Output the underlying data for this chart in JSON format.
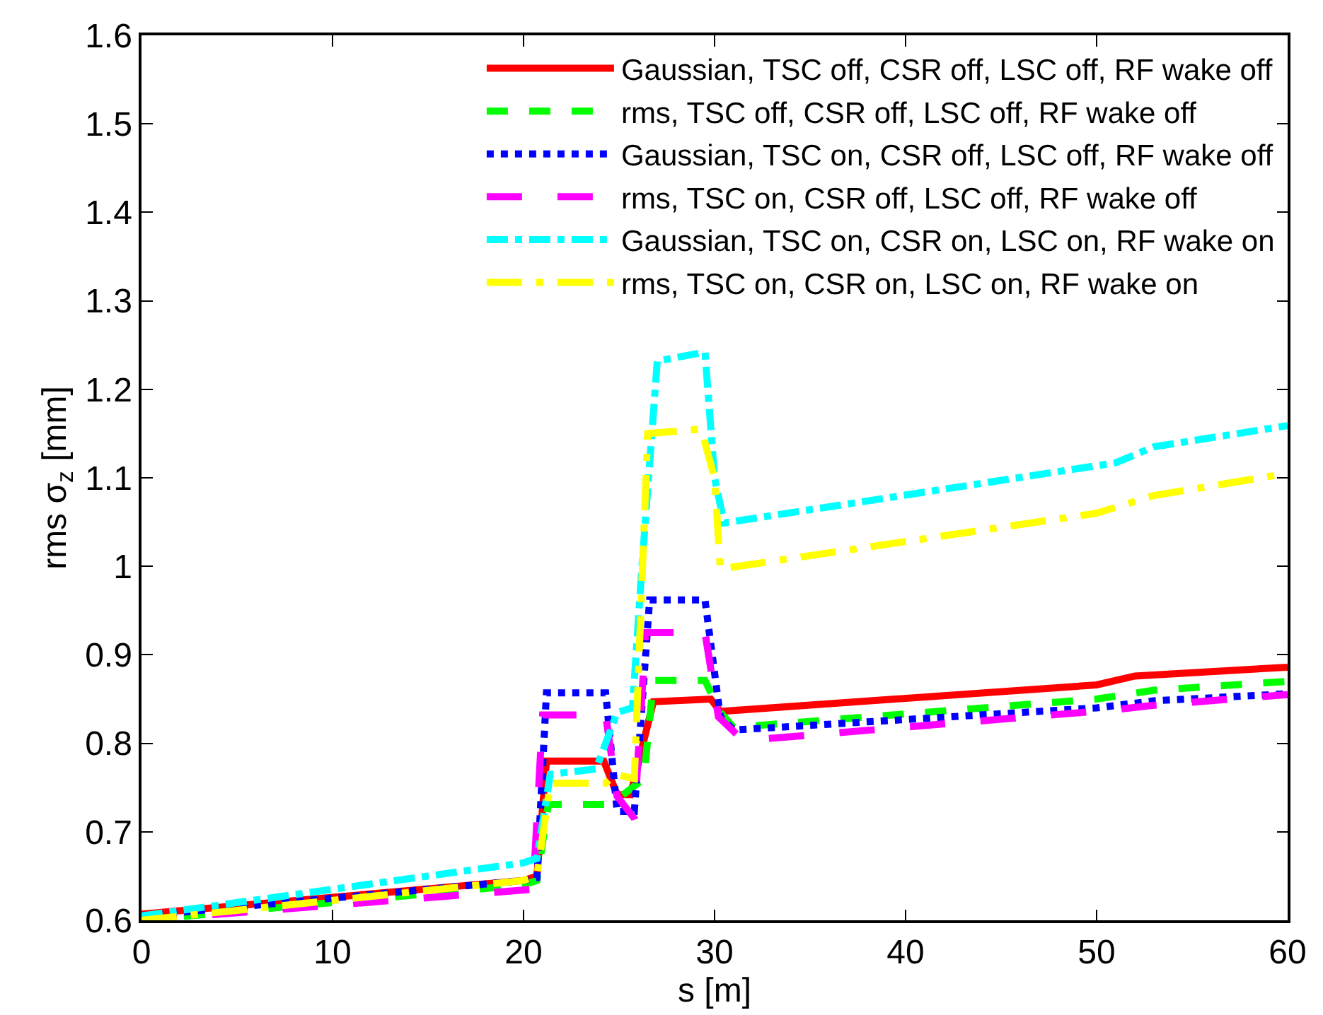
{
  "chart_data": {
    "type": "line",
    "xlabel": "s [m]",
    "ylabel": "rms σ$_{z}$ [mm]",
    "xlim": [
      0,
      60
    ],
    "ylim": [
      0.6,
      1.6
    ],
    "xticks": [
      0,
      10,
      20,
      30,
      40,
      50,
      60
    ],
    "yticks": [
      0.6,
      0.7,
      0.8,
      0.9,
      1,
      1.1,
      1.2,
      1.3,
      1.4,
      1.5,
      1.6
    ],
    "legend": "top right",
    "marker": "none",
    "series": [
      {
        "name": "Gaussian, TSC off, CSR off, LSC off, RF wake off",
        "color": "#ff0000",
        "line_style": "solid",
        "x": [
          0,
          20,
          20.7,
          21.2,
          24.2,
          24.9,
          25.6,
          26.8,
          29.8,
          30.3,
          50,
          52,
          60
        ],
        "values": [
          0.607,
          0.645,
          0.65,
          0.78,
          0.78,
          0.742,
          0.742,
          0.847,
          0.85,
          0.836,
          0.866,
          0.876,
          0.886
        ]
      },
      {
        "name": "rms, TSC off, CSR off, LSC off, RF wake off",
        "color": "#00ff00",
        "line_style": "dashed",
        "x": [
          0,
          20,
          20.7,
          21.3,
          24.3,
          24.8,
          26.3,
          26.8,
          29.5,
          30.3,
          31,
          50,
          53,
          60
        ],
        "values": [
          0.6,
          0.64,
          0.645,
          0.731,
          0.731,
          0.735,
          0.76,
          0.871,
          0.871,
          0.835,
          0.818,
          0.85,
          0.86,
          0.87
        ]
      },
      {
        "name": "Gaussian, TSC on, CSR off, LSC off, RF wake off",
        "color": "#0000ff",
        "line_style": "dotted",
        "x": [
          0,
          20,
          20.7,
          21.2,
          24.3,
          24.9,
          25.8,
          26.6,
          29.5,
          30.3,
          31,
          50,
          53,
          60
        ],
        "values": [
          0.605,
          0.645,
          0.648,
          0.857,
          0.857,
          0.723,
          0.723,
          0.962,
          0.962,
          0.83,
          0.815,
          0.84,
          0.848,
          0.856
        ]
      },
      {
        "name": "rms, TSC on, CSR off, LSC off, RF wake off",
        "color": "#ff00ff",
        "line_style": "long_dashed",
        "x": [
          0,
          20.5,
          21,
          24.3,
          24.9,
          25.8,
          26.4,
          29.5,
          30.2,
          31.5,
          51,
          53,
          60
        ],
        "values": [
          0.6,
          0.635,
          0.832,
          0.832,
          0.74,
          0.715,
          0.925,
          0.925,
          0.83,
          0.803,
          0.838,
          0.843,
          0.855
        ]
      },
      {
        "name": "Gaussian, TSC on, CSR on, LSC on, RF wake on",
        "color": "#00ffff",
        "line_style": "dash_dot",
        "x": [
          0,
          20,
          20.7,
          21.4,
          23.8,
          24.9,
          25.7,
          26.2,
          27,
          29.5,
          30,
          30.5,
          51,
          53,
          60
        ],
        "values": [
          0.605,
          0.665,
          0.67,
          0.765,
          0.771,
          0.835,
          0.84,
          1.0,
          1.232,
          1.242,
          1.1,
          1.049,
          1.117,
          1.135,
          1.159
        ]
      },
      {
        "name": "rms, TSC on, CSR on, LSC on, RF wake on",
        "color": "#ffff00",
        "line_style": "long_dash_dot",
        "x": [
          0,
          20,
          20.7,
          21.4,
          24.3,
          24.8,
          25.8,
          26.5,
          29.3,
          30,
          30.3,
          50,
          53,
          60
        ],
        "values": [
          0.6,
          0.645,
          0.65,
          0.755,
          0.755,
          0.765,
          0.76,
          1.15,
          1.155,
          1.1,
          0.997,
          1.06,
          1.08,
          1.105
        ]
      }
    ]
  }
}
